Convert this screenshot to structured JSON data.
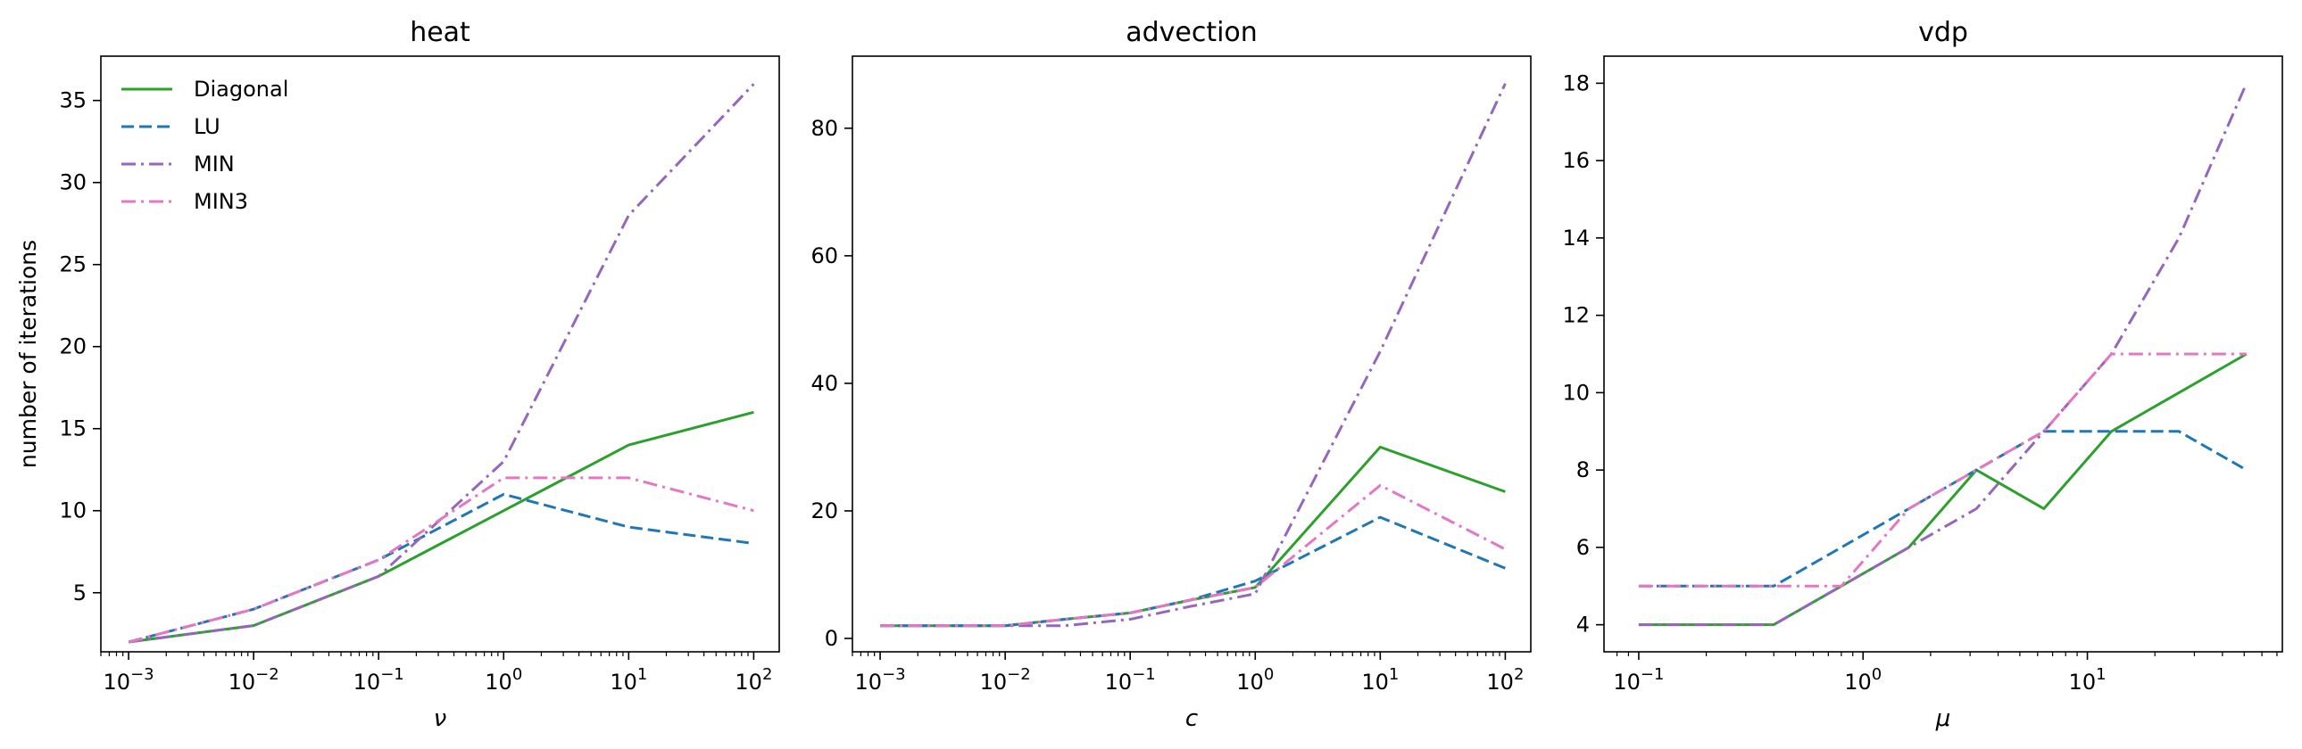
{
  "chart_data": [
    {
      "type": "line",
      "title": "heat",
      "xlabel": "ν",
      "ylabel": "number of iterations",
      "xscale": "log",
      "x": [
        0.001,
        0.01,
        0.1,
        1,
        10,
        100
      ],
      "xlim": [
        0.0006,
        160
      ],
      "ylim": [
        1.4,
        37.7
      ],
      "xticks": [
        0.001,
        0.01,
        0.1,
        1,
        10,
        100
      ],
      "xtick_labels": [
        {
          "base": "10",
          "exp": "−3"
        },
        {
          "base": "10",
          "exp": "−2"
        },
        {
          "base": "10",
          "exp": "−1"
        },
        {
          "base": "10",
          "exp": "0"
        },
        {
          "base": "10",
          "exp": "1"
        },
        {
          "base": "10",
          "exp": "2"
        }
      ],
      "yticks": [
        5,
        10,
        15,
        20,
        25,
        30,
        35
      ],
      "ytick_labels": [
        "5",
        "10",
        "15",
        "20",
        "25",
        "30",
        "35"
      ],
      "legend": "upper-left",
      "series": [
        {
          "name": "Diagonal",
          "color": "#2ca02c",
          "style": "solid",
          "values": [
            2,
            3,
            6,
            10,
            14,
            16
          ]
        },
        {
          "name": "LU",
          "color": "#1f77b4",
          "style": "dashed",
          "values": [
            2,
            4,
            7,
            11,
            9,
            8
          ]
        },
        {
          "name": "MIN",
          "color": "#9467bd",
          "style": "dashdot",
          "values": [
            2,
            3,
            6,
            13,
            28,
            36
          ]
        },
        {
          "name": "MIN3",
          "color": "#e377c2",
          "style": "dashdot",
          "values": [
            2,
            4,
            7,
            12,
            12,
            10
          ]
        }
      ]
    },
    {
      "type": "line",
      "title": "advection",
      "xlabel": "c",
      "ylabel": "",
      "xscale": "log",
      "x": [
        0.001,
        0.003,
        0.01,
        0.03,
        0.1,
        0.3,
        1,
        10,
        100
      ],
      "xlim": [
        0.0006,
        160
      ],
      "ylim": [
        -2.1,
        91.3
      ],
      "xticks": [
        0.001,
        0.01,
        0.1,
        1,
        10,
        100
      ],
      "xtick_labels": [
        {
          "base": "10",
          "exp": "−3"
        },
        {
          "base": "10",
          "exp": "−2"
        },
        {
          "base": "10",
          "exp": "−1"
        },
        {
          "base": "10",
          "exp": "0"
        },
        {
          "base": "10",
          "exp": "1"
        },
        {
          "base": "10",
          "exp": "2"
        }
      ],
      "yticks": [
        0,
        20,
        40,
        60,
        80
      ],
      "ytick_labels": [
        "0",
        "20",
        "40",
        "60",
        "80"
      ],
      "legend": "none",
      "series": [
        {
          "name": "Diagonal",
          "color": "#2ca02c",
          "style": "solid",
          "values": [
            2,
            2,
            2,
            3,
            4,
            6,
            8,
            30,
            23
          ]
        },
        {
          "name": "LU",
          "color": "#1f77b4",
          "style": "dashed",
          "values": [
            2,
            2,
            2,
            3,
            4,
            6,
            9,
            19,
            11
          ]
        },
        {
          "name": "MIN",
          "color": "#9467bd",
          "style": "dashdot",
          "values": [
            2,
            2,
            2,
            2,
            3,
            5,
            7,
            45,
            87
          ]
        },
        {
          "name": "MIN3",
          "color": "#e377c2",
          "style": "dashdot",
          "values": [
            2,
            2,
            2,
            3,
            4,
            6,
            8,
            24,
            14
          ]
        }
      ]
    },
    {
      "type": "line",
      "title": "vdp",
      "xlabel": "μ",
      "ylabel": "",
      "xscale": "log",
      "x": [
        0.1,
        0.2,
        0.4,
        0.8,
        1.6,
        3.2,
        6.4,
        12.8,
        25.6,
        51.2
      ],
      "xlim": [
        0.07,
        74
      ],
      "ylim": [
        3.3,
        18.7
      ],
      "xticks": [
        0.1,
        1,
        10
      ],
      "xtick_labels": [
        {
          "base": "10",
          "exp": "−1"
        },
        {
          "base": "10",
          "exp": "0"
        },
        {
          "base": "10",
          "exp": "1"
        }
      ],
      "yticks": [
        4,
        6,
        8,
        10,
        12,
        14,
        16,
        18
      ],
      "ytick_labels": [
        "4",
        "6",
        "8",
        "10",
        "12",
        "14",
        "16",
        "18"
      ],
      "legend": "none",
      "series": [
        {
          "name": "Diagonal",
          "color": "#2ca02c",
          "style": "solid",
          "values": [
            4,
            4,
            4,
            5,
            6,
            8,
            7,
            9,
            10,
            11
          ]
        },
        {
          "name": "LU",
          "color": "#1f77b4",
          "style": "dashed",
          "values": [
            5,
            5,
            5,
            6,
            7,
            8,
            9,
            9,
            9,
            8
          ]
        },
        {
          "name": "MIN",
          "color": "#9467bd",
          "style": "dashdot",
          "values": [
            4,
            4,
            4,
            5,
            6,
            7,
            9,
            11,
            14,
            18
          ]
        },
        {
          "name": "MIN3",
          "color": "#e377c2",
          "style": "dashdot",
          "values": [
            5,
            5,
            5,
            5,
            7,
            8,
            9,
            11,
            11,
            11
          ]
        }
      ]
    }
  ]
}
